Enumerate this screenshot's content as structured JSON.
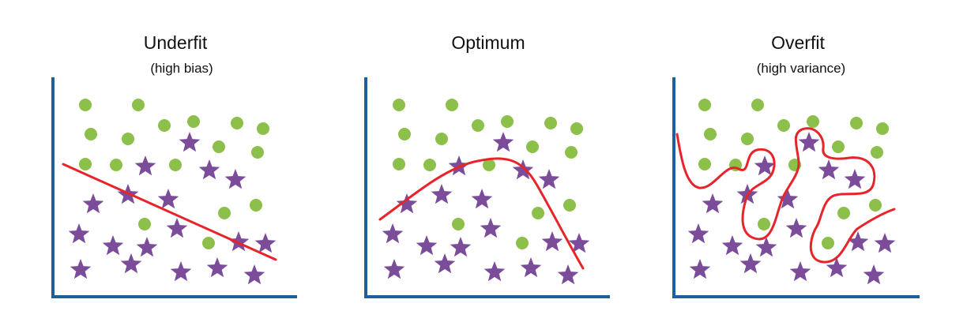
{
  "colors": {
    "class_a": "#8cc04b",
    "class_b": "#7b4c99",
    "fit_line": "#e8242a",
    "axis": "#1f5f9c"
  },
  "panels": [
    {
      "title": "Underfit",
      "subtitle": "(high bias)",
      "curve": "underfit-line"
    },
    {
      "title": "Optimum",
      "subtitle": "",
      "curve": "optimum-curve"
    },
    {
      "title": "Overfit",
      "subtitle": "(high variance)",
      "curve": "overfit-boundary"
    }
  ]
}
